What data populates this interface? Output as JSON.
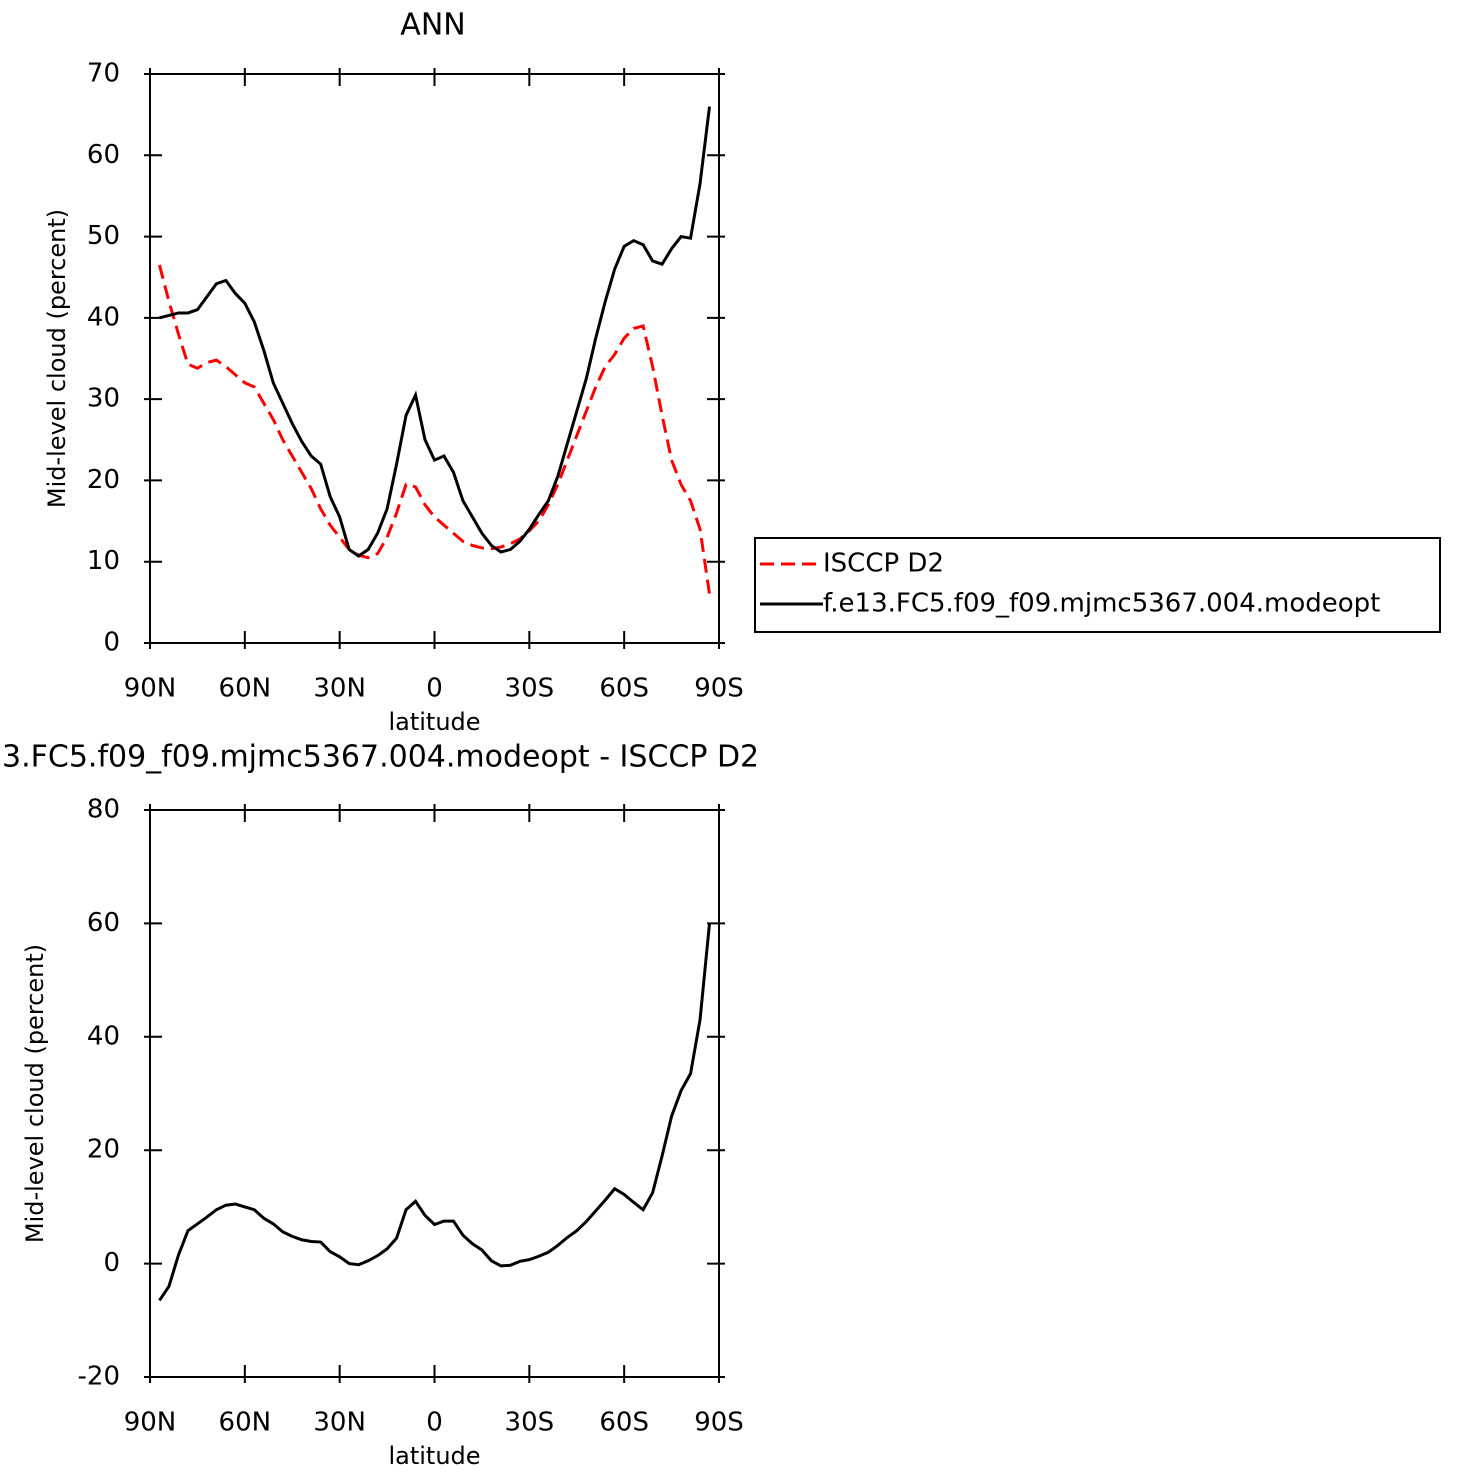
{
  "chart_data": [
    {
      "type": "line",
      "title": "ANN",
      "x_label": "latitude",
      "y_label": "Mid-level cloud (percent)",
      "x": [
        87,
        84,
        81,
        78,
        75,
        72,
        69,
        66,
        63,
        60,
        57,
        54,
        51,
        48,
        45,
        42,
        39,
        36,
        33,
        30,
        27,
        24,
        21,
        18,
        15,
        12,
        9,
        6,
        3,
        0,
        -3,
        -6,
        -9,
        -12,
        -15,
        -18,
        -21,
        -24,
        -27,
        -30,
        -33,
        -36,
        -39,
        -42,
        -45,
        -48,
        -51,
        -54,
        -57,
        -60,
        -63,
        -66,
        -69,
        -72,
        -75,
        -78,
        -81,
        -84,
        -87
      ],
      "series": [
        {
          "name": "ISCCP D2",
          "color": "#ff0000",
          "style": "dashed",
          "values": [
            46.5,
            42,
            38,
            34.3,
            33.8,
            34.5,
            34.8,
            34,
            33,
            32,
            31.5,
            29.5,
            27.5,
            25,
            23,
            21,
            19,
            16.5,
            14.5,
            13,
            11.5,
            10.8,
            10.5,
            11,
            13,
            16,
            19.5,
            19.2,
            17,
            15.5,
            14.5,
            13.5,
            12.5,
            12,
            11.7,
            11.6,
            11.8,
            12.2,
            12.8,
            13.8,
            15,
            17,
            19.5,
            22.5,
            25.5,
            28.5,
            31.5,
            34,
            35.5,
            37.5,
            38.7,
            39,
            34,
            28,
            22.5,
            19.5,
            17.5,
            14,
            6
          ]
        },
        {
          "name": "f.e13.FC5.f09_f09.mjmc5367.004.modeopt",
          "color": "#000000",
          "style": "solid",
          "values": [
            40,
            40.3,
            40.6,
            40.6,
            41,
            42.6,
            44.2,
            44.6,
            43,
            41.8,
            39.5,
            36,
            32,
            29.5,
            27,
            24.8,
            23,
            22,
            18,
            15.5,
            11.5,
            10.7,
            11.5,
            13.5,
            16.5,
            22,
            28,
            30.5,
            25,
            22.5,
            23,
            21,
            17.5,
            15.5,
            13.5,
            12,
            11.2,
            11.5,
            12.5,
            14,
            15.8,
            17.5,
            20.5,
            24.5,
            28.5,
            32.5,
            37.5,
            42,
            46,
            48.8,
            49.5,
            49,
            47,
            46.6,
            48.5,
            50,
            49.8,
            56.5,
            66
          ]
        }
      ],
      "xlim": [
        90,
        -90
      ],
      "xticks": [
        {
          "value": 90,
          "label": "90N"
        },
        {
          "value": 60,
          "label": "60N"
        },
        {
          "value": 30,
          "label": "30N"
        },
        0,
        {
          "value": -30,
          "label": "30S"
        },
        {
          "value": -60,
          "label": "60S"
        },
        {
          "value": -90,
          "label": "90S"
        }
      ],
      "ylim": [
        0,
        70
      ],
      "yticks": [
        0,
        10,
        20,
        30,
        40,
        50,
        60,
        70
      ],
      "legend": "right"
    },
    {
      "type": "line",
      "title": "3.FC5.f09_f09.mjmc5367.004.modeopt - ISCCP D2",
      "x_label": "latitude",
      "y_label": "Mid-level cloud (percent)",
      "x": [
        87,
        84,
        81,
        78,
        75,
        72,
        69,
        66,
        63,
        60,
        57,
        54,
        51,
        48,
        45,
        42,
        39,
        36,
        33,
        30,
        27,
        24,
        21,
        18,
        15,
        12,
        9,
        6,
        3,
        0,
        -3,
        -6,
        -9,
        -12,
        -15,
        -18,
        -21,
        -24,
        -27,
        -30,
        -33,
        -36,
        -39,
        -42,
        -45,
        -48,
        -51,
        -54,
        -57,
        -60,
        -63,
        -66,
        -69,
        -72,
        -75,
        -78,
        -81,
        -84,
        -87
      ],
      "values": [
        -6.5,
        -4,
        1.5,
        5.8,
        7,
        8.2,
        9.5,
        10.3,
        10.5,
        10,
        9.5,
        8,
        7,
        5.6,
        4.8,
        4.2,
        3.9,
        3.8,
        2.1,
        1.2,
        0,
        -0.2,
        0.5,
        1.4,
        2.6,
        4.5,
        9.5,
        11,
        8.5,
        6.9,
        7.5,
        7.5,
        5,
        3.5,
        2.4,
        0.5,
        -0.4,
        -0.3,
        0.4,
        0.7,
        1.3,
        2,
        3.2,
        4.6,
        5.8,
        7.4,
        9.3,
        11.2,
        13.2,
        12.2,
        10.8,
        9.5,
        12.5,
        19,
        26,
        30.5,
        33.5,
        43,
        60
      ],
      "color": "#000000",
      "xlim": [
        90,
        -90
      ],
      "xticks": [
        {
          "value": 90,
          "label": "90N"
        },
        {
          "value": 60,
          "label": "60N"
        },
        {
          "value": 30,
          "label": "30N"
        },
        0,
        {
          "value": -30,
          "label": "30S"
        },
        {
          "value": -60,
          "label": "60S"
        },
        {
          "value": -90,
          "label": "90S"
        }
      ],
      "ylim": [
        -20,
        80
      ],
      "yticks": [
        -20,
        0,
        20,
        40,
        60,
        80
      ]
    }
  ]
}
